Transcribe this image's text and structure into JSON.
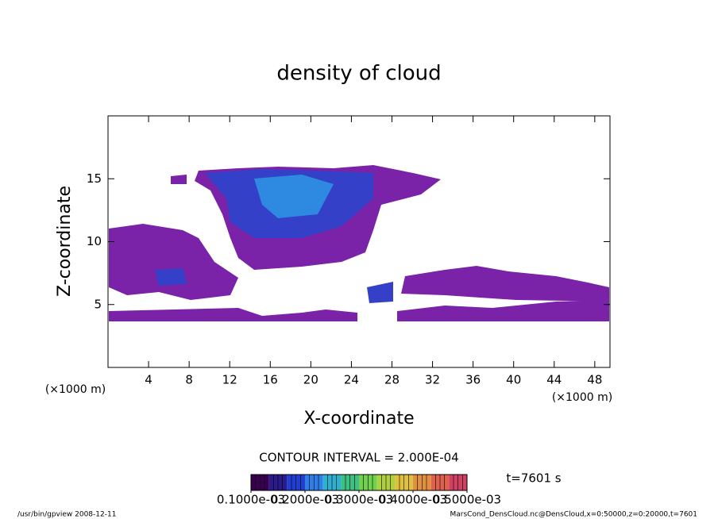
{
  "chart_data": {
    "type": "contour",
    "title": "density of cloud",
    "x_label": "X-coordinate",
    "y_label": "Z-coordinate",
    "x_units": "(×1000 m)",
    "xlim": [
      0,
      49.5
    ],
    "ylim": [
      0,
      20
    ],
    "xticks": [
      4,
      8,
      12,
      16,
      20,
      24,
      28,
      32,
      36,
      40,
      44,
      48
    ],
    "yticks": [
      5,
      10,
      15
    ],
    "contour_interval": "CONTOUR INTERVAL = 2.000E-04",
    "time_label": "t=7601 s",
    "colorbar": {
      "lim": [
        0.0001,
        0.0005
      ],
      "colors": [
        "#3a0050",
        "#2a1a8a",
        "#1f3fd0",
        "#2f7fe8",
        "#30b0d0",
        "#40c080",
        "#70d050",
        "#b0d040",
        "#e0c040",
        "#e09040",
        "#e06050",
        "#d04060"
      ],
      "ticks": [
        {
          "value": 0.0001,
          "label": "0.1000e-03"
        },
        {
          "value": 0.0002,
          "label": "0.2000e-03"
        },
        {
          "value": 0.0003,
          "label": "0.3000e-03"
        },
        {
          "value": 0.0004,
          "label": "0.4000e-03"
        },
        {
          "value": 0.0005,
          "label": "0.5000e-03"
        }
      ]
    },
    "footer_left": "/usr/bin/gpview  2008-12-11",
    "footer_right": "MarsCond_DensCloud.nc@DensCloud,x=0:50000,z=0:20000,t=7601"
  }
}
